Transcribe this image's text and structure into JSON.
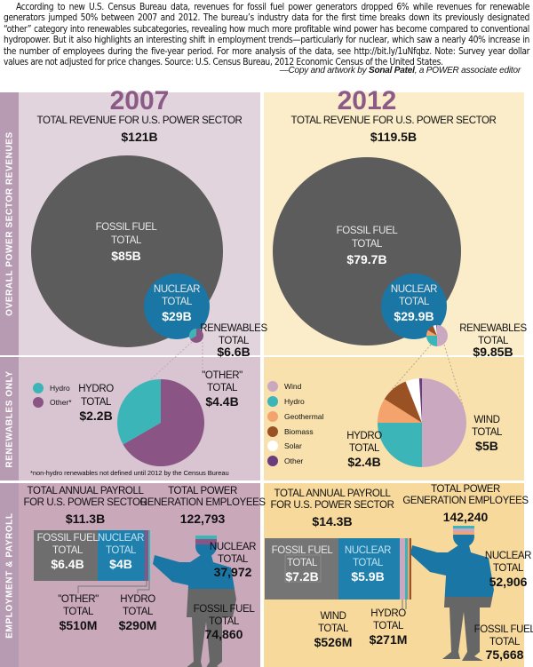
{
  "intro": {
    "text": "According to new U.S. Census Bureau data, revenues for fossil fuel power generators dropped 6% while revenues for renewable generators jumped 50% between 2007 and 2012. The bureau’s industry data for the first time breaks down its previously designated “other” category into renewables subcategories, revealing how much more profitable wind power has become compared to conventional hydropower. But it also highlights an interesting shift in employment trends—particularly for nuclear, which saw a nearly 40% increase in the number of employees during the five-year period. For more analysis of the data, see http://bit.ly/1uNfqbz. Note: Survey year dollar values are not adjusted for price changes. Source: U.S. Census Bureau, 2012 Economic Census of the United States.",
    "credit_prefix": "—Copy and artwork by ",
    "credit_name": "Sonal Patel",
    "credit_suffix": ", a POWER associate editor"
  },
  "sections": {
    "revenues": "OVERALL POWER SECTOR REVENUES",
    "renewables": "RENEWABLES ONLY",
    "employment": "EMPLOYMENT & PAYROLL"
  },
  "y2007": {
    "year": "2007",
    "revenue_label": "TOTAL  REVENUE FOR U.S. POWER SECTOR",
    "revenue_value": "$121B",
    "fossil_l1": "FOSSIL FUEL",
    "fossil_l2": "TOTAL",
    "fossil_value": "$85B",
    "nuclear_l1": "NUCLEAR",
    "nuclear_l2": "TOTAL",
    "nuclear_value": "$29B",
    "renew_l1": "RENEWABLES",
    "renew_l2": "TOTAL",
    "renew_value": "$6.6B",
    "legend": [
      "Hydro",
      "Other*"
    ],
    "hydro_l1": "HYDRO",
    "hydro_l2": "TOTAL",
    "hydro_value": "$2.2B",
    "other_l1": "\"OTHER\"",
    "other_l2": "TOTAL",
    "other_value": "$4.4B",
    "footnote": "*non-hydro renewables not defined until 2012 by the Census Bureau",
    "payroll_l1": "TOTAL ANNUAL PAYROLL",
    "payroll_l2": "FOR U.S. POWER SECTOR",
    "payroll_value": "$11.3B",
    "emp_l1": "TOTAL POWER",
    "emp_l2": "GENERATION EMPLOYEES",
    "emp_value": "122,793",
    "pay_fossil_l1": "FOSSIL FUEL",
    "pay_fossil_l2": "TOTAL",
    "pay_fossil_value": "$6.4B",
    "pay_nuclear_l1": "NUCLEAR",
    "pay_nuclear_l2": "TOTAL",
    "pay_nuclear_value": "$4B",
    "pay_other_l1": "\"OTHER\"",
    "pay_other_l2": "TOTAL",
    "pay_other_value": "$510M",
    "pay_hydro_l1": "HYDRO",
    "pay_hydro_l2": "TOTAL",
    "pay_hydro_value": "$290M",
    "emp_nuc_l1": "NUCLEAR",
    "emp_nuc_l2": "TOTAL",
    "emp_nuc_value": "37,972",
    "emp_fos_l1": "FOSSIL FUEL",
    "emp_fos_l2": "TOTAL",
    "emp_fos_value": "74,860"
  },
  "y2012": {
    "year": "2012",
    "revenue_label": "TOTAL REVENUE FOR U.S. POWER SECTOR",
    "revenue_value": "$119.5B",
    "fossil_l1": "FOSSIL FUEL",
    "fossil_l2": "TOTAL",
    "fossil_value": "$79.7B",
    "nuclear_l1": "NUCLEAR",
    "nuclear_l2": "TOTAL",
    "nuclear_value": "$29.9B",
    "renew_l1": "RENEWABLES",
    "renew_l2": "TOTAL",
    "renew_value": "$9.85B",
    "legend": [
      "Wind",
      "Hydro",
      "Geothermal",
      "Biomass",
      "Solar",
      "Other"
    ],
    "hydro_l1": "HYDRO",
    "hydro_l2": "TOTAL",
    "hydro_value": "$2.4B",
    "wind_l1": "WIND",
    "wind_l2": "TOTAL",
    "wind_value": "$5B",
    "payroll_l1": "TOTAL ANNUAL PAYROLL",
    "payroll_l2": "FOR U.S. POWER SECTOR",
    "payroll_value": "$14.3B",
    "emp_l1": "TOTAL POWER",
    "emp_l2": "GENERATION EMPLOYEES",
    "emp_value": "142,240",
    "pay_fossil_l1": "FOSSIL FUEL",
    "pay_fossil_l2": "TOTAL",
    "pay_fossil_value": "$7.2B",
    "pay_nuclear_l1": "NUCLEAR",
    "pay_nuclear_l2": "TOTAL",
    "pay_nuclear_value": "$5.9B",
    "pay_wind_l1": "WIND",
    "pay_wind_l2": "TOTAL",
    "pay_wind_value": "$526M",
    "pay_hydro_l1": "HYDRO",
    "pay_hydro_l2": "TOTAL",
    "pay_hydro_value": "$271M",
    "emp_nuc_l1": "NUCLEAR",
    "emp_nuc_l2": "TOTAL",
    "emp_nuc_value": "52,906",
    "emp_fos_l1": "FOSSIL FUEL",
    "emp_fos_l2": "TOTAL",
    "emp_fos_value": "75,668"
  },
  "colors": {
    "fossil": "#5c5c5c",
    "nuclear": "#1a77a5",
    "hydro": "#3cb5b8",
    "other2007": "#8a5585",
    "wind": "#c9a8c0",
    "geothermal": "#f4a36c",
    "biomass": "#9a5224",
    "solar": "#ffffff",
    "other2012": "#6b3c7c",
    "year": "#8b5a86"
  },
  "chart_data": [
    {
      "type": "bubble",
      "title": "Overall power sector revenues 2007 ($B)",
      "categories": [
        "Fossil fuel",
        "Nuclear",
        "Renewables"
      ],
      "values": [
        85,
        29,
        6.6
      ],
      "total": 121
    },
    {
      "type": "bubble",
      "title": "Overall power sector revenues 2012 ($B)",
      "categories": [
        "Fossil fuel",
        "Nuclear",
        "Renewables"
      ],
      "values": [
        79.7,
        29.9,
        9.85
      ],
      "total": 119.5
    },
    {
      "type": "pie",
      "title": "Renewables 2007 ($B)",
      "categories": [
        "Hydro",
        "Other*"
      ],
      "values": [
        2.2,
        4.4
      ]
    },
    {
      "type": "pie",
      "title": "Renewables 2012 (share %)",
      "categories": [
        "Wind",
        "Hydro",
        "Geothermal",
        "Biomass",
        "Solar",
        "Other"
      ],
      "values": [
        50,
        25,
        9,
        10,
        5,
        1
      ]
    },
    {
      "type": "bar",
      "title": "Annual payroll 2007",
      "categories": [
        "Fossil fuel",
        "Nuclear",
        "Other",
        "Hydro"
      ],
      "values": [
        6400,
        4000,
        510,
        290
      ],
      "unit": "$M"
    },
    {
      "type": "bar",
      "title": "Annual payroll 2012",
      "categories": [
        "Fossil fuel",
        "Nuclear",
        "Wind",
        "Hydro"
      ],
      "values": [
        7200,
        5900,
        526,
        271
      ],
      "unit": "$M"
    },
    {
      "type": "bar",
      "title": "Power generation employees",
      "categories": [
        "2007 Nuclear",
        "2007 Fossil fuel",
        "2012 Nuclear",
        "2012 Fossil fuel"
      ],
      "values": [
        37972,
        74860,
        52906,
        75668
      ]
    }
  ]
}
